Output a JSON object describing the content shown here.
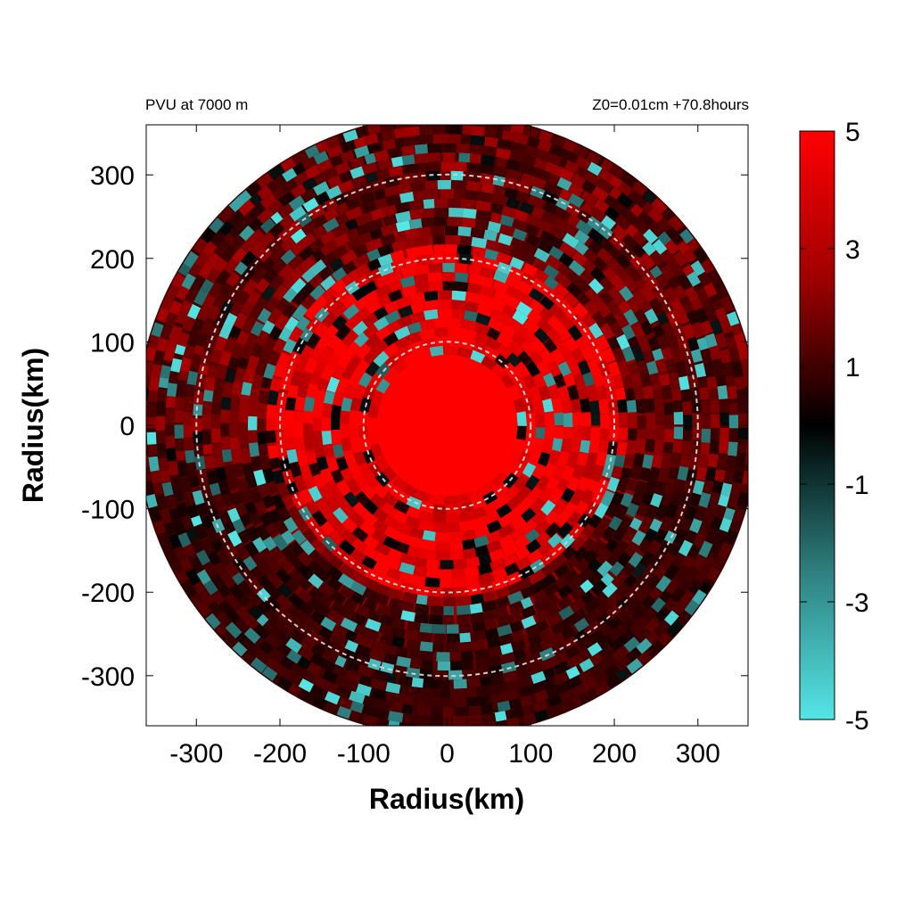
{
  "chart_data": {
    "type": "heatmap",
    "title_left": "PVU at  7000 m",
    "title_right": "Z0=0.01cm  +70.8hours",
    "xlabel": "Radius(km)",
    "ylabel": "Radius(km)",
    "xlim": [
      -360,
      360
    ],
    "ylim": [
      -360,
      360
    ],
    "xticks": [
      -300,
      -200,
      -100,
      0,
      100,
      200,
      300
    ],
    "yticks": [
      300,
      200,
      100,
      0,
      -100,
      -200,
      -300
    ],
    "colorbar": {
      "range": [
        -5,
        5
      ],
      "ticks": [
        5,
        3,
        1,
        -1,
        -3,
        -5
      ],
      "colors": {
        "max": "#ff0000",
        "mid": "#000000",
        "min": "#55e6e6"
      }
    },
    "reference_circles_km": [
      100,
      200,
      300
    ],
    "data_radius_km": 372,
    "description_regions": [
      {
        "r_min": 0,
        "r_max": 80,
        "pvu": 5
      },
      {
        "r_min": 80,
        "r_max": 220,
        "pvu": 4
      },
      {
        "r_min": 220,
        "r_max": 372,
        "pvu": 1.5
      }
    ]
  }
}
